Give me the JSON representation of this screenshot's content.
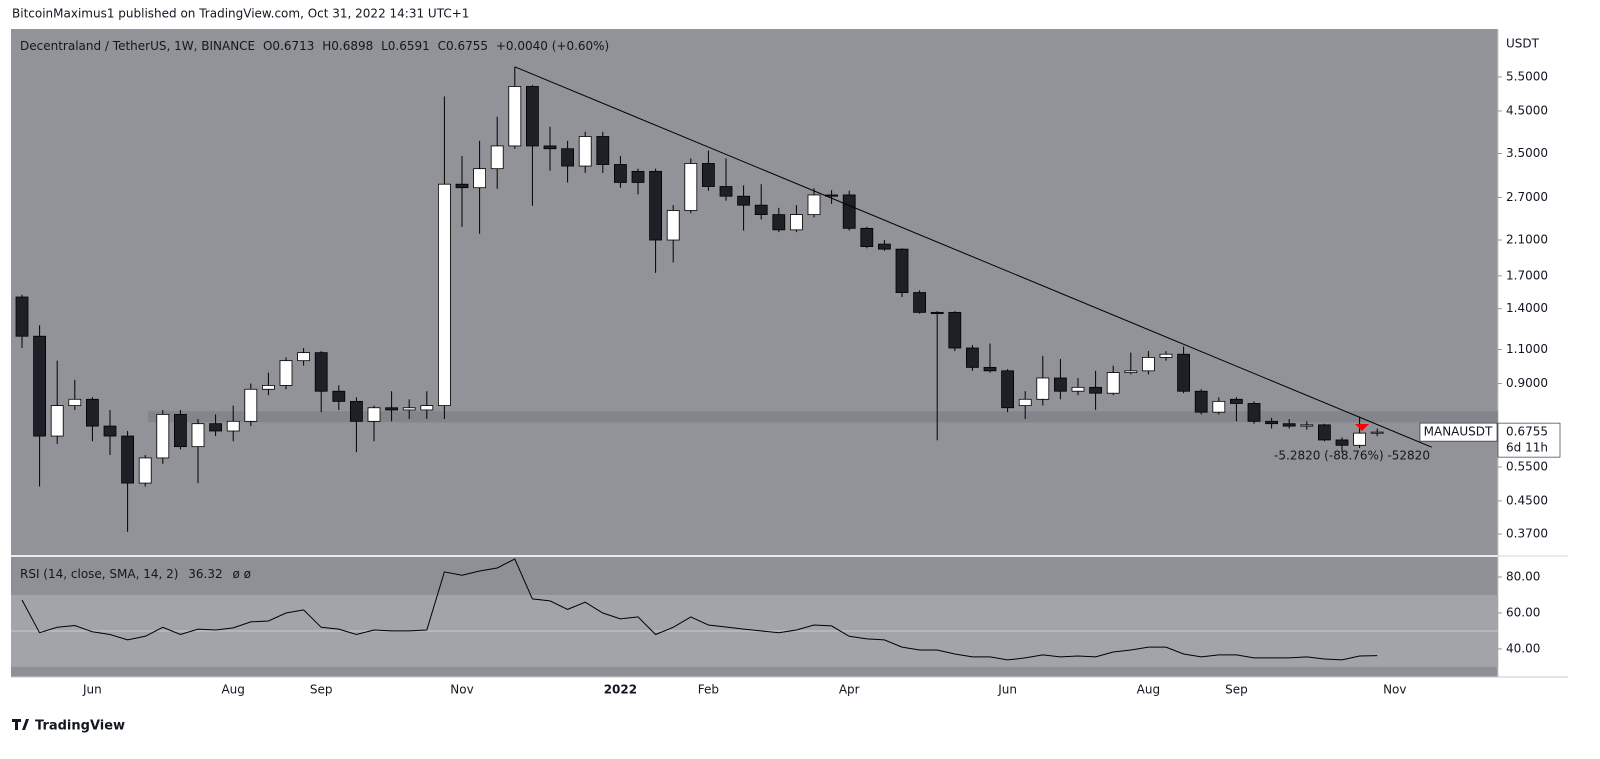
{
  "header": {
    "text": "BitcoinMaximus1 published on TradingView.com, Oct 31, 2022 14:31 UTC+1"
  },
  "footer": {
    "brand": "TradingView"
  },
  "chart_data": [
    {
      "type": "candlestick",
      "title": "Decentraland / TetherUS, 1W, BINANCE",
      "ohlc_letters": [
        "O",
        "H",
        "L",
        "C"
      ],
      "change": "+0.0040 (+0.60%)",
      "symbol": "MANAUSDT",
      "countdown": "6d 11h",
      "axis_unit": "USDT",
      "measure_label": "-5.2820 (-88.76%) -52820",
      "categories": [
        null,
        null,
        null,
        null,
        "Jun",
        null,
        null,
        null,
        null,
        null,
        null,
        null,
        "Aug",
        null,
        null,
        null,
        null,
        "Sep",
        null,
        null,
        null,
        null,
        null,
        null,
        null,
        "Nov",
        null,
        null,
        null,
        null,
        null,
        null,
        null,
        null,
        "2022",
        null,
        null,
        null,
        null,
        "Feb",
        null,
        null,
        null,
        null,
        null,
        null,
        null,
        "Apr",
        null,
        null,
        null,
        null,
        null,
        null,
        null,
        null,
        "Jun",
        null,
        null,
        null,
        null,
        null,
        null,
        null,
        "Aug",
        null,
        null,
        null,
        null,
        "Sep",
        null,
        null,
        null,
        null,
        null,
        null,
        null,
        null,
        "Nov",
        null
      ],
      "open": [
        1.5,
        1.19,
        0.66,
        0.79,
        0.82,
        0.7,
        0.66,
        0.5,
        0.58,
        0.75,
        0.62,
        0.71,
        0.68,
        0.72,
        0.87,
        0.89,
        1.03,
        1.08,
        0.86,
        0.81,
        0.72,
        0.78,
        0.77,
        0.77,
        0.79,
        2.92,
        2.86,
        3.2,
        3.66,
        5.2,
        3.66,
        3.6,
        3.25,
        3.87,
        3.28,
        3.15,
        3.15,
        2.1,
        2.5,
        3.3,
        2.88,
        2.72,
        2.58,
        2.44,
        2.23,
        2.44,
        2.74,
        2.74,
        2.25,
        2.05,
        1.99,
        1.54,
        1.37,
        1.37,
        1.11,
        0.99,
        0.97,
        0.79,
        0.82,
        0.93,
        0.86,
        0.88,
        0.85,
        0.96,
        0.97,
        1.05,
        1.07,
        0.86,
        0.76,
        0.82,
        0.8,
        0.72,
        0.71,
        0.7,
        0.705,
        0.645,
        0.625,
        0.6713,
        null,
        null
      ],
      "high": [
        1.52,
        1.27,
        1.03,
        0.92,
        0.83,
        0.77,
        0.68,
        0.59,
        0.77,
        0.77,
        0.73,
        0.75,
        0.79,
        0.9,
        0.96,
        1.05,
        1.11,
        1.09,
        0.89,
        0.83,
        0.79,
        0.86,
        0.82,
        0.86,
        4.9,
        3.45,
        3.77,
        4.35,
        5.84,
        5.25,
        4.1,
        3.77,
        3.98,
        3.98,
        3.45,
        3.2,
        3.2,
        2.58,
        3.4,
        3.56,
        3.4,
        2.9,
        2.92,
        2.54,
        2.58,
        2.85,
        2.82,
        2.81,
        2.27,
        2.1,
        2.0,
        1.56,
        1.38,
        1.38,
        1.13,
        1.14,
        0.98,
        0.86,
        1.06,
        1.04,
        0.93,
        0.97,
        1.0,
        1.08,
        1.09,
        1.09,
        1.12,
        0.87,
        0.83,
        0.83,
        0.81,
        0.735,
        0.73,
        0.72,
        0.71,
        0.655,
        0.74,
        0.6898,
        null,
        null
      ],
      "low": [
        1.11,
        0.49,
        0.63,
        0.77,
        0.64,
        0.59,
        0.375,
        0.49,
        0.56,
        0.61,
        0.5,
        0.66,
        0.64,
        0.7,
        0.84,
        0.87,
        1.0,
        0.76,
        0.77,
        0.6,
        0.64,
        0.72,
        0.73,
        0.73,
        0.73,
        2.27,
        2.18,
        2.84,
        3.6,
        2.57,
        3.16,
        2.95,
        3.12,
        3.12,
        2.86,
        2.75,
        1.73,
        1.84,
        2.46,
        2.81,
        2.65,
        2.22,
        2.37,
        2.2,
        2.2,
        2.4,
        2.6,
        2.22,
        2.0,
        1.97,
        1.5,
        1.36,
        0.644,
        1.09,
        0.97,
        0.96,
        0.76,
        0.73,
        0.79,
        0.82,
        0.84,
        0.77,
        0.84,
        0.95,
        0.95,
        1.03,
        0.85,
        0.75,
        0.75,
        0.72,
        0.71,
        0.69,
        0.69,
        0.685,
        0.64,
        0.6,
        0.615,
        0.6591,
        null,
        null
      ],
      "close": [
        1.19,
        0.66,
        0.79,
        0.82,
        0.7,
        0.66,
        0.5,
        0.58,
        0.75,
        0.62,
        0.71,
        0.68,
        0.72,
        0.87,
        0.89,
        1.03,
        1.08,
        0.86,
        0.81,
        0.72,
        0.78,
        0.77,
        0.78,
        0.79,
        2.92,
        2.86,
        3.2,
        3.66,
        5.2,
        3.66,
        3.6,
        3.25,
        3.87,
        3.28,
        2.95,
        2.95,
        2.1,
        2.5,
        3.3,
        2.88,
        2.72,
        2.58,
        2.44,
        2.23,
        2.44,
        2.74,
        2.72,
        2.25,
        2.02,
        1.99,
        1.54,
        1.37,
        1.36,
        1.11,
        0.99,
        0.97,
        0.78,
        0.82,
        0.93,
        0.86,
        0.88,
        0.85,
        0.96,
        0.97,
        1.05,
        1.07,
        0.86,
        0.76,
        0.81,
        0.8,
        0.72,
        0.71,
        0.7,
        0.705,
        0.645,
        0.625,
        0.6715,
        0.6755,
        null,
        null
      ],
      "log_scale": true,
      "ylim": [
        0.327,
        7.3
      ],
      "yticks": [
        {
          "value": 0.37,
          "label": "0.3700"
        },
        {
          "value": 0.45,
          "label": "0.4500"
        },
        {
          "value": 0.55,
          "label": "0.5500"
        },
        {
          "value": 0.9,
          "label": "0.9000"
        },
        {
          "value": 1.1,
          "label": "1.1000"
        },
        {
          "value": 1.4,
          "label": "1.4000"
        },
        {
          "value": 1.7,
          "label": "1.7000"
        },
        {
          "value": 2.1,
          "label": "2.1000"
        },
        {
          "value": 2.7,
          "label": "2.7000"
        },
        {
          "value": 3.5,
          "label": "3.5000"
        },
        {
          "value": 4.5,
          "label": "4.5000"
        },
        {
          "value": 5.5,
          "label": "5.5000"
        }
      ],
      "grid": false,
      "up_color": "#ffffff",
      "down_color": "#1e2028",
      "wick_color": "#000000",
      "trendline": {
        "x": [
          28,
          80.1
        ],
        "y": [
          5.84,
          0.618
        ]
      },
      "zone": [
        0.716,
        0.764
      ]
    },
    {
      "type": "line",
      "title": "RSI (14, close, SMA, 14, 2)",
      "extra": "ø ø",
      "values": [
        67.2,
        49,
        52,
        53,
        49.5,
        48,
        45,
        47,
        52,
        48,
        51,
        50.5,
        51.7,
        55,
        55.5,
        60,
        61.7,
        52,
        51,
        48,
        50.5,
        50,
        50,
        50.5,
        82.8,
        81,
        83.3,
        85,
        90,
        67.8,
        66.7,
        62,
        66,
        60,
        56.7,
        57.8,
        48,
        52,
        57.8,
        53.3,
        52.2,
        51,
        50,
        49,
        50.5,
        53.3,
        52.8,
        47,
        45.6,
        45,
        41,
        39.4,
        39.4,
        37.2,
        35.6,
        35.6,
        33.9,
        35,
        36.7,
        35.6,
        36.1,
        35.6,
        38.3,
        39.4,
        41,
        41,
        37.2,
        35.6,
        36.7,
        36.7,
        35,
        35,
        35,
        35.6,
        34.4,
        33.9,
        36.1,
        36.32,
        null,
        null
      ],
      "color": "#000000",
      "ylim": [
        24.4,
        91.1
      ],
      "yticks": [
        {
          "value": 40,
          "label": "40.00"
        },
        {
          "value": 60,
          "label": "60.00"
        },
        {
          "value": 80,
          "label": "80.00"
        }
      ],
      "band": [
        30,
        70
      ],
      "midline": 50
    }
  ]
}
